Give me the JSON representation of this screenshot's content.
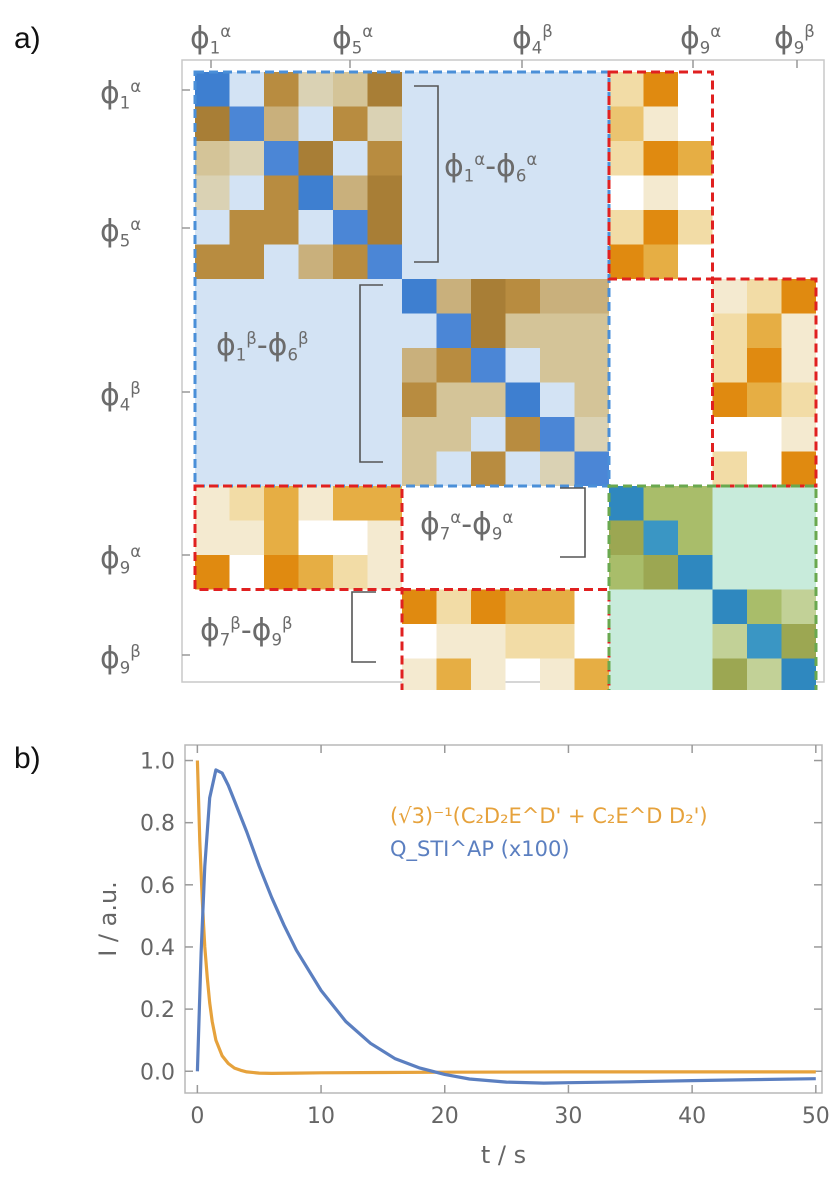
{
  "panel_a_label": "a)",
  "panel_b_label": "b)",
  "matrix": {
    "top_labels": [
      {
        "base": "ϕ",
        "sub": "1",
        "sup": "α"
      },
      {
        "base": "ϕ",
        "sub": "5",
        "sup": "α"
      },
      {
        "base": "ϕ",
        "sub": "4",
        "sup": "β"
      },
      {
        "base": "ϕ",
        "sub": "9",
        "sup": "α"
      },
      {
        "base": "ϕ",
        "sub": "9",
        "sup": "β"
      }
    ],
    "left_labels": [
      {
        "base": "ϕ",
        "sub": "1",
        "sup": "α"
      },
      {
        "base": "ϕ",
        "sub": "5",
        "sup": "α"
      },
      {
        "base": "ϕ",
        "sub": "4",
        "sup": "β"
      },
      {
        "base": "ϕ",
        "sub": "9",
        "sup": "α"
      },
      {
        "base": "ϕ",
        "sub": "9",
        "sup": "β"
      }
    ],
    "block_labels": [
      {
        "from": {
          "base": "ϕ",
          "sub": "1",
          "sup": "α"
        },
        "to": {
          "base": "ϕ",
          "sub": "6",
          "sup": "α"
        }
      },
      {
        "from": {
          "base": "ϕ",
          "sub": "1",
          "sup": "β"
        },
        "to": {
          "base": "ϕ",
          "sub": "6",
          "sup": "β"
        }
      },
      {
        "from": {
          "base": "ϕ",
          "sub": "7",
          "sup": "α"
        },
        "to": {
          "base": "ϕ",
          "sub": "9",
          "sup": "α"
        }
      },
      {
        "from": {
          "base": "ϕ",
          "sub": "7",
          "sup": "β"
        },
        "to": {
          "base": "ϕ",
          "sub": "9",
          "sup": "β"
        }
      }
    ]
  },
  "chart_data": {
    "type": "line",
    "xlabel": "t / s",
    "ylabel": "I / a.u.",
    "xlim": [
      -1,
      50.5
    ],
    "ylim": [
      -0.07,
      1.05
    ],
    "xticks": [
      0,
      10,
      20,
      30,
      40,
      50
    ],
    "yticks": [
      0.0,
      0.2,
      0.4,
      0.6,
      0.8,
      1.0
    ],
    "grid": false,
    "legend_position": "top-center",
    "series": [
      {
        "name": "(√3)⁻¹(C₂D₂E^D' + C₂E^D D₂')",
        "color": "#E6A23C",
        "x": [
          0,
          0.1,
          0.2,
          0.3,
          0.4,
          0.5,
          0.6,
          0.8,
          1.0,
          1.2,
          1.5,
          2.0,
          2.5,
          3.0,
          3.5,
          4.0,
          5.0,
          6.0,
          8.0,
          10,
          15,
          20,
          30,
          40,
          50
        ],
        "y": [
          1.0,
          0.87,
          0.74,
          0.64,
          0.55,
          0.47,
          0.4,
          0.3,
          0.22,
          0.16,
          0.1,
          0.05,
          0.025,
          0.01,
          0.003,
          -0.002,
          -0.006,
          -0.007,
          -0.006,
          -0.005,
          -0.004,
          -0.003,
          -0.002,
          -0.002,
          -0.002
        ]
      },
      {
        "name": "Q_STI^AP (x100)",
        "color": "#5B7FC0",
        "x": [
          0,
          0.3,
          0.6,
          1.0,
          1.5,
          2.0,
          2.5,
          3.0,
          4.0,
          5.0,
          6.0,
          7.0,
          8.0,
          10,
          12,
          14,
          16,
          18,
          20,
          22,
          25,
          28,
          30,
          35,
          40,
          45,
          50
        ],
        "y": [
          0.0,
          0.38,
          0.66,
          0.88,
          0.97,
          0.96,
          0.92,
          0.87,
          0.77,
          0.66,
          0.56,
          0.47,
          0.39,
          0.26,
          0.16,
          0.09,
          0.04,
          0.01,
          -0.01,
          -0.025,
          -0.035,
          -0.038,
          -0.037,
          -0.034,
          -0.03,
          -0.027,
          -0.024
        ]
      }
    ]
  }
}
